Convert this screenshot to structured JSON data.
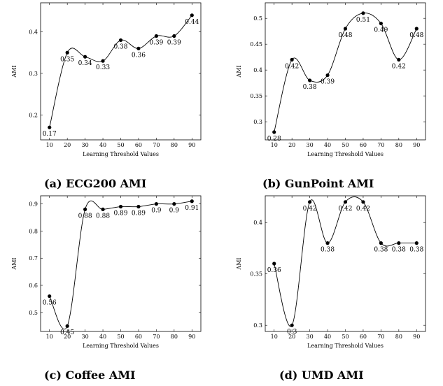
{
  "chart_data": [
    {
      "type": "line",
      "caption": "(a) ECG200 AMI",
      "xlabel": "Learning Threshold Values",
      "ylabel": "AMI",
      "x": [
        10,
        20,
        30,
        40,
        50,
        60,
        70,
        80,
        90
      ],
      "y": [
        0.17,
        0.35,
        0.34,
        0.33,
        0.38,
        0.36,
        0.39,
        0.39,
        0.44
      ],
      "labels": [
        "0.17",
        "0.35",
        "0.34",
        "0.33",
        "0.38",
        "0.36",
        "0.39",
        "0.39",
        "0.44"
      ],
      "xticks": [
        "10",
        "20",
        "30",
        "40",
        "50",
        "60",
        "70",
        "80",
        "90"
      ],
      "yticks": [
        0.2,
        0.3,
        0.4
      ],
      "ytick_labels": [
        "0.2",
        "0.3",
        "0.4"
      ],
      "xlim": [
        5,
        95
      ],
      "ylim": [
        0.14,
        0.47
      ],
      "grid": false,
      "legend": "none"
    },
    {
      "type": "line",
      "caption": "(b) GunPoint AMI",
      "xlabel": "Learning Threshold Values",
      "ylabel": "AMI",
      "x": [
        10,
        20,
        30,
        40,
        50,
        60,
        70,
        80,
        90
      ],
      "y": [
        0.28,
        0.42,
        0.38,
        0.39,
        0.48,
        0.51,
        0.49,
        0.42,
        0.48
      ],
      "labels": [
        "0.28",
        "0.42",
        "0.38",
        "0.39",
        "0.48",
        "0.51",
        "0.49",
        "0.42",
        "0.48"
      ],
      "xticks": [
        "10",
        "20",
        "30",
        "40",
        "50",
        "60",
        "70",
        "80",
        "90"
      ],
      "yticks": [
        0.3,
        0.35,
        0.4,
        0.45,
        0.5
      ],
      "ytick_labels": [
        "0.3",
        "0.35",
        "0.4",
        "0.45",
        "0.5"
      ],
      "xlim": [
        5,
        95
      ],
      "ylim": [
        0.265,
        0.53
      ],
      "grid": false,
      "legend": "none"
    },
    {
      "type": "line",
      "caption": "(c) Coffee AMI",
      "xlabel": "Learning Threshold Values",
      "ylabel": "AMI",
      "x": [
        10,
        20,
        30,
        40,
        50,
        60,
        70,
        80,
        90
      ],
      "y": [
        0.56,
        0.45,
        0.88,
        0.88,
        0.89,
        0.89,
        0.9,
        0.9,
        0.91
      ],
      "labels": [
        "0.56",
        "0.45",
        "0.88",
        "0.88",
        "0.89",
        "0.89",
        "0.9",
        "0.9",
        "0.91"
      ],
      "xticks": [
        "10",
        "20",
        "30",
        "40",
        "50",
        "60",
        "70",
        "80",
        "90"
      ],
      "yticks": [
        0.5,
        0.6,
        0.7,
        0.8,
        0.9
      ],
      "ytick_labels": [
        "0.5",
        "0.6",
        "0.7",
        "0.8",
        "0.9"
      ],
      "xlim": [
        5,
        95
      ],
      "ylim": [
        0.43,
        0.93
      ],
      "grid": false,
      "legend": "none"
    },
    {
      "type": "line",
      "caption": "(d) UMD AMI",
      "xlabel": "Learning Threshold Values",
      "ylabel": "AMI",
      "x": [
        10,
        20,
        30,
        40,
        50,
        60,
        70,
        80,
        90
      ],
      "y": [
        0.36,
        0.3,
        0.42,
        0.38,
        0.42,
        0.42,
        0.38,
        0.38,
        0.38
      ],
      "labels": [
        "0.36",
        "0.3",
        "0.42",
        "0.38",
        "0.42",
        "0.42",
        "0.38",
        "0.38",
        "0.38"
      ],
      "xticks": [
        "10",
        "20",
        "30",
        "40",
        "50",
        "60",
        "70",
        "80",
        "90"
      ],
      "yticks": [
        0.3,
        0.35,
        0.4
      ],
      "ytick_labels": [
        "0.3",
        "0.35",
        "0.4"
      ],
      "xlim": [
        5,
        95
      ],
      "ylim": [
        0.294,
        0.426
      ],
      "grid": false,
      "legend": "none"
    }
  ]
}
